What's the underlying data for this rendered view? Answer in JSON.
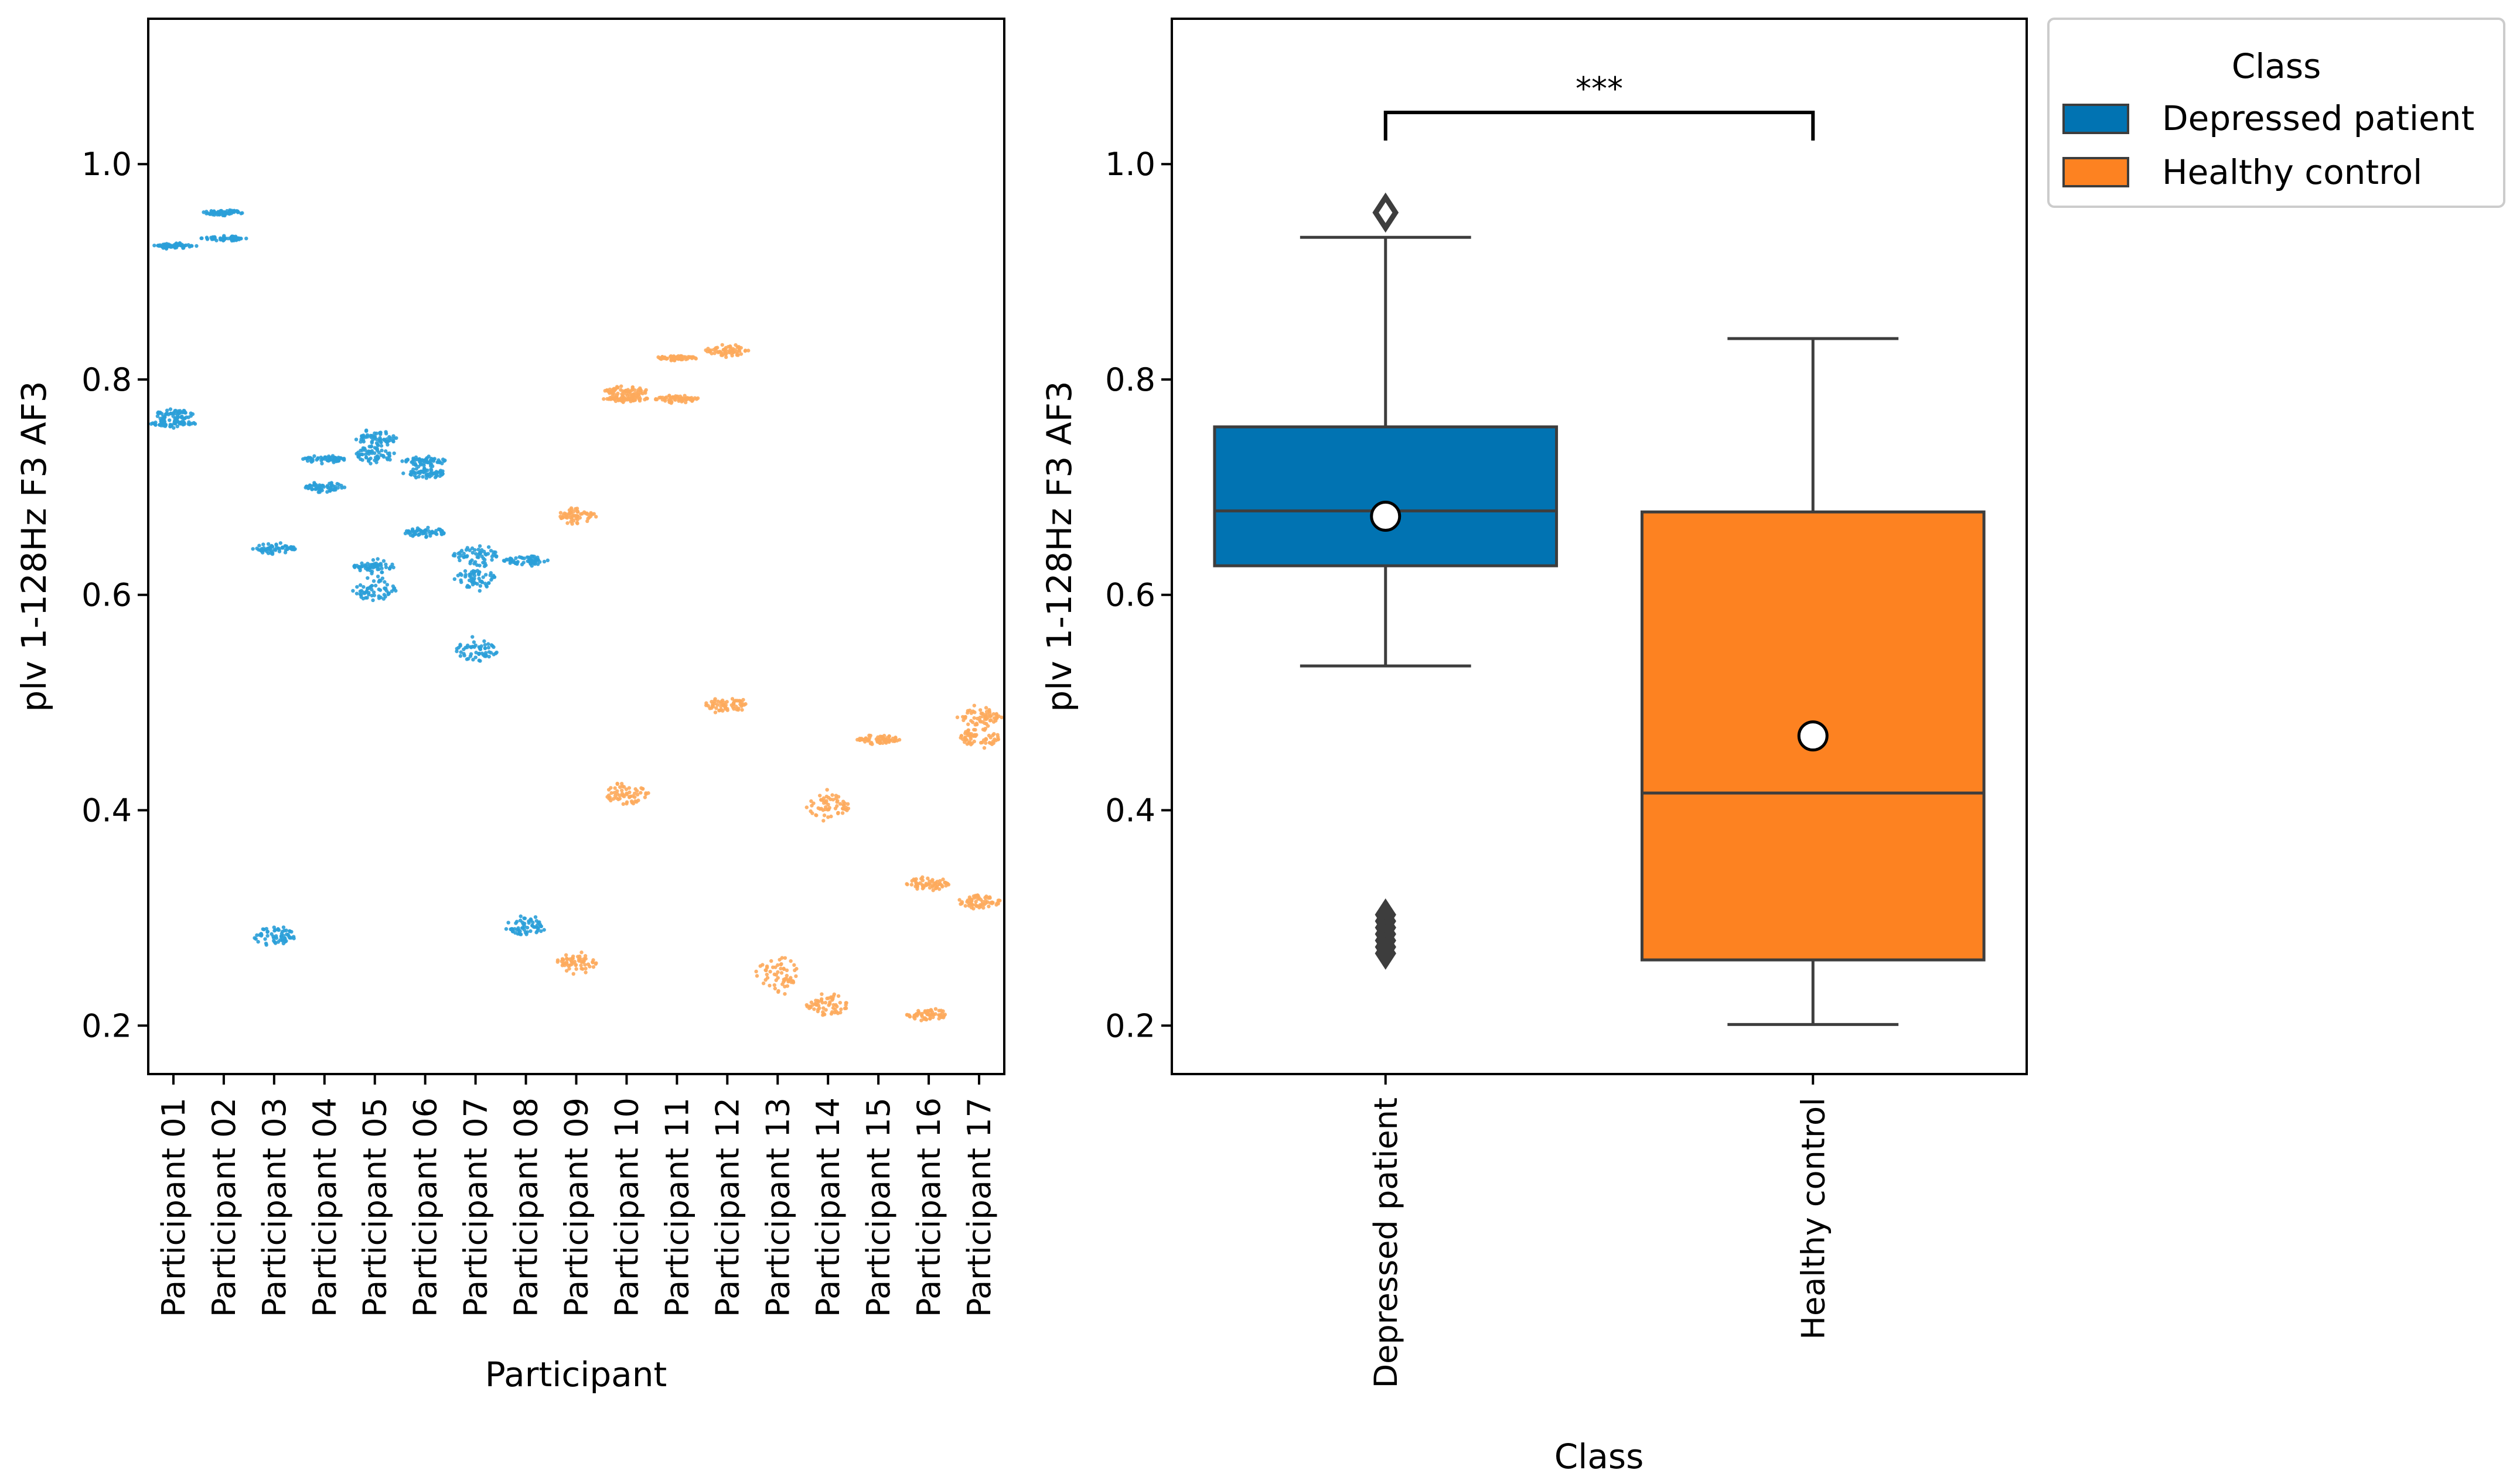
{
  "chart_data": [
    {
      "type": "scatter",
      "subtype": "swarm",
      "xlabel": "Participant",
      "ylabel": "plv  1-128Hz  F3  AF3",
      "ylim": [
        0.155,
        1.135
      ],
      "yticks": [
        0.2,
        0.4,
        0.6,
        0.8,
        1.0
      ],
      "ytick_labels": [
        "0.2",
        "0.4",
        "0.6",
        "0.8",
        "1.0"
      ],
      "grid": false,
      "categories": [
        "Participant 01",
        "Participant 02",
        "Participant 03",
        "Participant 04",
        "Participant 05",
        "Participant 06",
        "Participant 07",
        "Participant 08",
        "Participant 09",
        "Participant 10",
        "Participant 11",
        "Participant 12",
        "Participant 13",
        "Participant 14",
        "Participant 15",
        "Participant 16",
        "Participant 17"
      ],
      "classes": [
        "Depressed patient",
        "Depressed patient",
        "Depressed patient",
        "Depressed patient",
        "Depressed patient",
        "Depressed patient",
        "Depressed patient",
        "Depressed patient",
        "Healthy control",
        "Healthy control",
        "Healthy control",
        "Healthy control",
        "Healthy control",
        "Healthy control",
        "Healthy control",
        "Healthy control",
        "Healthy control"
      ],
      "clusters": [
        [
          {
            "center": 0.924,
            "spread": 0.002
          },
          {
            "center": 0.767,
            "spread": 0.004
          },
          {
            "center": 0.759,
            "spread": 0.003
          }
        ],
        [
          {
            "center": 0.955,
            "spread": 0.002
          },
          {
            "center": 0.931,
            "spread": 0.002
          }
        ],
        [
          {
            "center": 0.643,
            "spread": 0.004
          },
          {
            "center": 0.283,
            "spread": 0.009
          }
        ],
        [
          {
            "center": 0.726,
            "spread": 0.003
          },
          {
            "center": 0.7,
            "spread": 0.004
          }
        ],
        [
          {
            "center": 0.745,
            "spread": 0.007
          },
          {
            "center": 0.73,
            "spread": 0.007
          },
          {
            "center": 0.626,
            "spread": 0.005
          },
          {
            "center": 0.605,
            "spread": 0.01
          }
        ],
        [
          {
            "center": 0.724,
            "spread": 0.004
          },
          {
            "center": 0.713,
            "spread": 0.004
          },
          {
            "center": 0.658,
            "spread": 0.004
          }
        ],
        [
          {
            "center": 0.637,
            "spread": 0.009
          },
          {
            "center": 0.615,
            "spread": 0.009
          },
          {
            "center": 0.548,
            "spread": 0.009
          }
        ],
        [
          {
            "center": 0.632,
            "spread": 0.004
          },
          {
            "center": 0.292,
            "spread": 0.008
          }
        ],
        [
          {
            "center": 0.673,
            "spread": 0.006
          },
          {
            "center": 0.258,
            "spread": 0.008
          }
        ],
        [
          {
            "center": 0.789,
            "spread": 0.004
          },
          {
            "center": 0.782,
            "spread": 0.003
          },
          {
            "center": 0.415,
            "spread": 0.01
          }
        ],
        [
          {
            "center": 0.82,
            "spread": 0.002
          },
          {
            "center": 0.782,
            "spread": 0.003
          }
        ],
        [
          {
            "center": 0.827,
            "spread": 0.005
          },
          {
            "center": 0.498,
            "spread": 0.008
          }
        ],
        [
          {
            "center": 0.248,
            "spread": 0.015
          }
        ],
        [
          {
            "center": 0.403,
            "spread": 0.011
          },
          {
            "center": 0.219,
            "spread": 0.009
          }
        ],
        [
          {
            "center": 0.466,
            "spread": 0.004
          }
        ],
        [
          {
            "center": 0.332,
            "spread": 0.006
          },
          {
            "center": 0.21,
            "spread": 0.005
          }
        ],
        [
          {
            "center": 0.486,
            "spread": 0.008
          },
          {
            "center": 0.467,
            "spread": 0.008
          },
          {
            "center": 0.315,
            "spread": 0.006
          }
        ]
      ]
    },
    {
      "type": "box",
      "xlabel": "Class",
      "ylabel": "plv  1-128Hz  F3  AF3",
      "ylim": [
        0.155,
        1.135
      ],
      "yticks": [
        0.2,
        0.4,
        0.6,
        0.8,
        1.0
      ],
      "ytick_labels": [
        "0.2",
        "0.4",
        "0.6",
        "0.8",
        "1.0"
      ],
      "grid": false,
      "categories": [
        "Depressed patient",
        "Healthy control"
      ],
      "boxes": [
        {
          "name": "Depressed patient",
          "whisker_low": 0.534,
          "q1": 0.627,
          "median": 0.678,
          "q3": 0.756,
          "whisker_high": 0.932,
          "mean": 0.673,
          "outliers": [
            0.955,
            0.303,
            0.297,
            0.291,
            0.285,
            0.279,
            0.273,
            0.267
          ]
        },
        {
          "name": "Healthy control",
          "whisker_low": 0.201,
          "q1": 0.261,
          "median": 0.416,
          "q3": 0.677,
          "whisker_high": 0.838,
          "mean": 0.469,
          "outliers": []
        }
      ],
      "significance": {
        "label": "***",
        "y": 1.048
      },
      "legend": {
        "title": "Class",
        "placement": "upper-right-outside",
        "entries": [
          "Depressed patient",
          "Healthy control"
        ]
      }
    }
  ],
  "colors": {
    "depressed": "#0173b2",
    "healthy": "#fd8221",
    "depressed_swarm": "#2a9fd8",
    "healthy_swarm": "#fdaa5c",
    "box_line": "#3d3d3d"
  }
}
